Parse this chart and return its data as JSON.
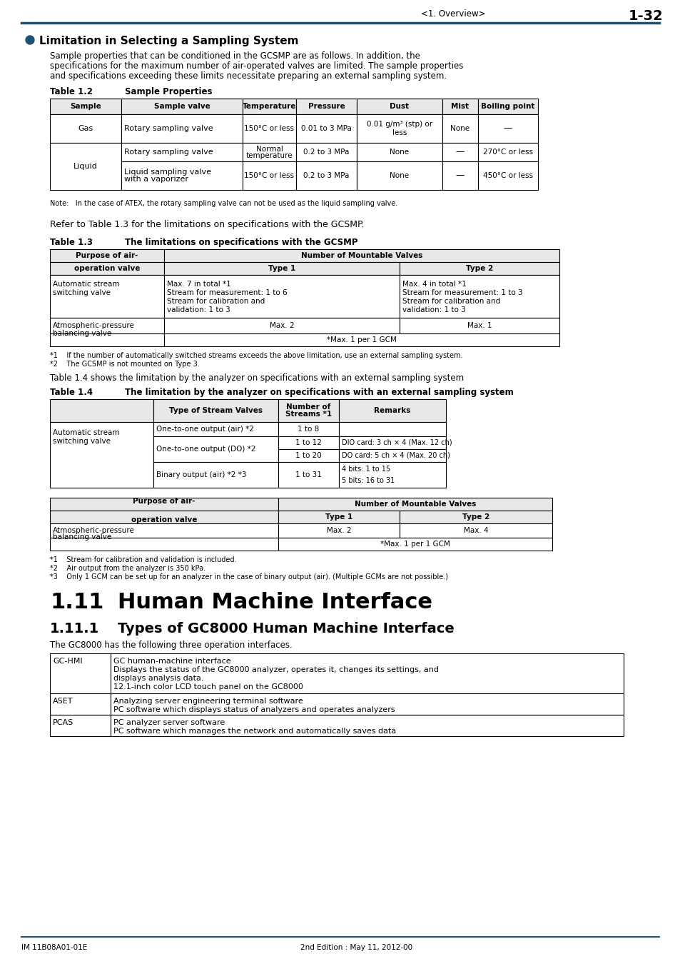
{
  "page_header_left": "<1. Overview>",
  "page_header_right": "1-32",
  "header_line_color": "#1a5276",
  "section_bullet_color": "#1a5276",
  "section_title": "Limitation in Selecting a Sampling System",
  "intro_text": "Sample properties that can be conditioned in the GCSMP are as follows. In addition, the\nspecifications for the maximum number of air-operated valves are limited. The sample properties\nand specifications exceeding these limits necessitate preparing an external sampling system.",
  "table12_label": "Table 1.2",
  "table12_title": "Sample Properties",
  "table13_label": "Table 1.3",
  "table13_title": "The limitations on specifications with the GCSMP",
  "table14_label": "Table 1.4",
  "table14_title": "The limitation by the analyzer on specifications with an external sampling system",
  "note_atex": "Note:   In the case of ATEX, the rotary sampling valve can not be used as the liquid sampling valve.",
  "refer_text": "Refer to Table 1.3 for the limitations on specifications with the GCSMP.",
  "table14_intro": "Table 1.4 shows the limitation by the analyzer on specifications with an external sampling system",
  "footnote1_13": "*1    If the number of automatically switched streams exceeds the above limitation, use an external sampling system.",
  "footnote2_13": "*2    The GCSMP is not mounted on Type 3.",
  "footnote1_14": "*1    Stream for calibration and validation is included.",
  "footnote2_14": "*2    Air output from the analyzer is 350 kPa.",
  "footnote3_14": "*3    Only 1 GCM can be set up for an analyzer in the case of binary output (air). (Multiple GCMs are not possible.)",
  "section_1_11": "1.11",
  "section_1_11_title": "Human Machine Interface",
  "section_1_11_1": "1.11.1",
  "section_1_11_1_title": "Types of GC8000 Human Machine Interface",
  "section_1_11_1_intro": "The GC8000 has the following three operation interfaces.",
  "footer_left": "IM 11B08A01-01E",
  "footer_middle": "2nd Edition : May 11, 2012-00",
  "background_color": "#ffffff",
  "text_color": "#000000",
  "table_header_bg": "#d0d0d0",
  "table_border_color": "#000000"
}
